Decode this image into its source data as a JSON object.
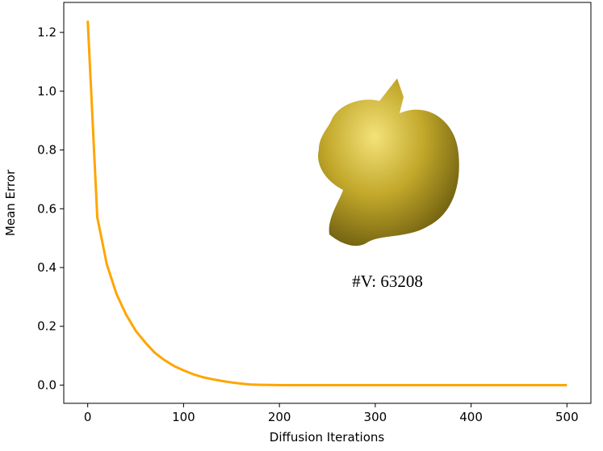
{
  "chart_data": {
    "type": "line",
    "xlabel": "Diffusion Iterations",
    "ylabel": "Mean Error",
    "annotation": "#V: 63208",
    "x": [
      0,
      10,
      20,
      30,
      40,
      50,
      60,
      70,
      80,
      90,
      100,
      110,
      120,
      130,
      140,
      150,
      160,
      170,
      180,
      190,
      200,
      210,
      220,
      230,
      240,
      250,
      260,
      270,
      280,
      290,
      300,
      310,
      320,
      330,
      340,
      350,
      360,
      370,
      380,
      390,
      400,
      410,
      420,
      430,
      440,
      450,
      460,
      470,
      480,
      490,
      500
    ],
    "values": [
      1.24,
      0.57,
      0.41,
      0.31,
      0.24,
      0.185,
      0.145,
      0.11,
      0.085,
      0.065,
      0.05,
      0.037,
      0.027,
      0.02,
      0.014,
      0.009,
      0.005,
      0.002,
      0.001,
      0.0005,
      0,
      0,
      0,
      0,
      0,
      0,
      0,
      0,
      0,
      0,
      0,
      0,
      0,
      0,
      0,
      0,
      0,
      0,
      0,
      0,
      0,
      0,
      0,
      0,
      0,
      0,
      0,
      0,
      0,
      0,
      0
    ],
    "color": "#ffa500",
    "xlim": [
      -25,
      525
    ],
    "xticks": [
      0,
      100,
      200,
      300,
      400,
      500
    ],
    "ylim": [
      -0.062,
      1.302
    ],
    "yticks": [
      {
        "value": 0,
        "label": "0.0"
      },
      0.2,
      0.4,
      0.6,
      0.8,
      {
        "value": 1,
        "label": "1.0"
      },
      1.2
    ],
    "grid": false
  }
}
